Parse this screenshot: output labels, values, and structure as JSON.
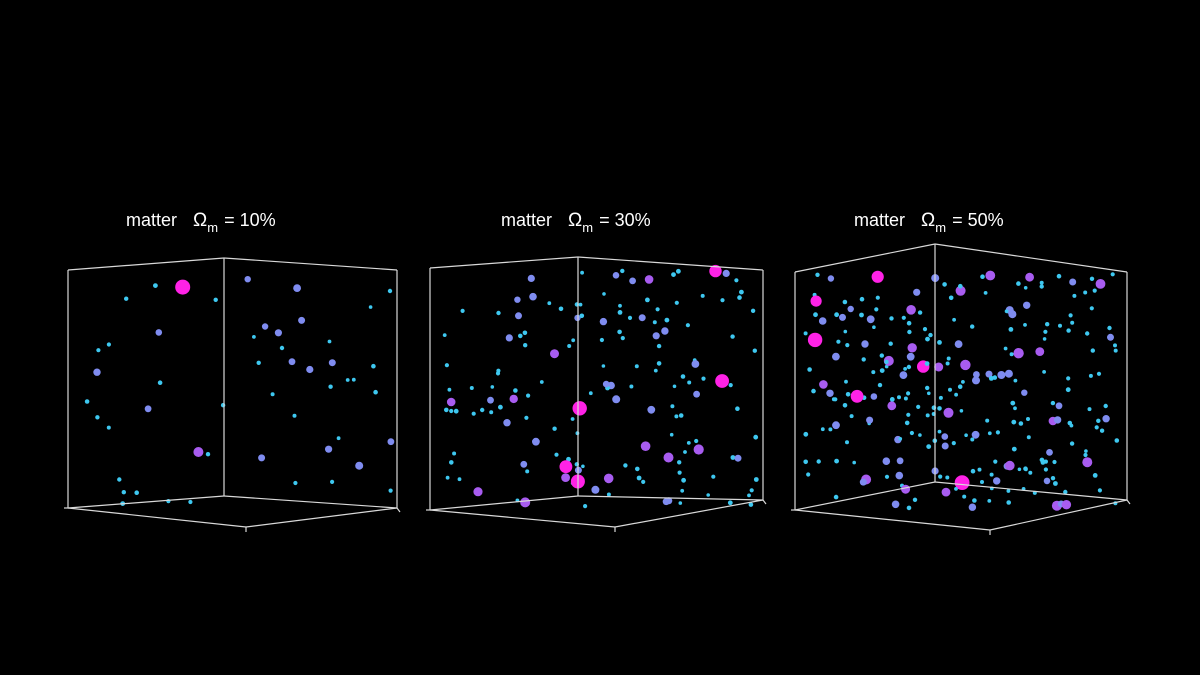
{
  "colors": {
    "background": "#000000",
    "axes": "#d9d9d9",
    "particle_small": "#3ec8f0",
    "particle_medium": "#7f8cf0",
    "particle_large": "#a85cf0",
    "particle_massive": "#ff22e6"
  },
  "panels": [
    {
      "word": "matter",
      "symbol": "Ω",
      "subscript": "m",
      "value": "= 10%",
      "matter_fraction": 0.1
    },
    {
      "word": "matter",
      "symbol": "Ω",
      "subscript": "m",
      "value": "= 30%",
      "matter_fraction": 0.3
    },
    {
      "word": "matter",
      "symbol": "Ω",
      "subscript": "m",
      "value": "= 50%",
      "matter_fraction": 0.5
    }
  ]
}
